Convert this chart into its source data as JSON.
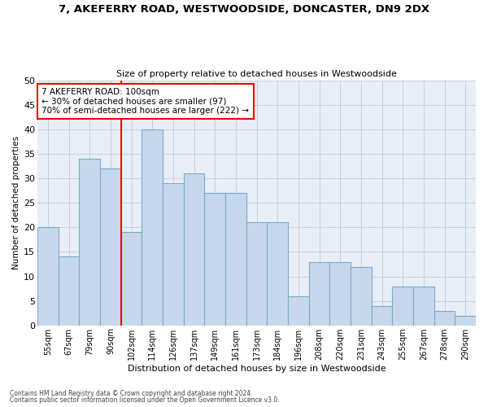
{
  "title1": "7, AKEFERRY ROAD, WESTWOODSIDE, DONCASTER, DN9 2DX",
  "title2": "Size of property relative to detached houses in Westwoodside",
  "xlabel": "Distribution of detached houses by size in Westwoodside",
  "ylabel": "Number of detached properties",
  "categories": [
    "55sqm",
    "67sqm",
    "79sqm",
    "90sqm",
    "102sqm",
    "114sqm",
    "126sqm",
    "137sqm",
    "149sqm",
    "161sqm",
    "173sqm",
    "184sqm",
    "196sqm",
    "208sqm",
    "220sqm",
    "231sqm",
    "243sqm",
    "255sqm",
    "267sqm",
    "278sqm",
    "290sqm"
  ],
  "bar_heights": [
    20,
    14,
    34,
    32,
    19,
    40,
    29,
    31,
    27,
    27,
    21,
    21,
    6,
    13,
    13,
    12,
    4,
    8,
    8,
    3,
    2
  ],
  "bar_color": "#c8d8ec",
  "bar_edgecolor": "#7aaac8",
  "vline_x_index": 4,
  "annotation_line1": "7 AKEFERRY ROAD: 100sqm",
  "annotation_line2": "← 30% of detached houses are smaller (97)",
  "annotation_line3": "70% of semi-detached houses are larger (222) →",
  "vline_color": "red",
  "ann_box_edgecolor": "red",
  "ylim": [
    0,
    50
  ],
  "yticks": [
    0,
    5,
    10,
    15,
    20,
    25,
    30,
    35,
    40,
    45,
    50
  ],
  "bg_color": "#e8eef8",
  "grid_color": "#c0cad8",
  "footer1": "Contains HM Land Registry data © Crown copyright and database right 2024.",
  "footer2": "Contains public sector information licensed under the Open Government Licence v3.0."
}
